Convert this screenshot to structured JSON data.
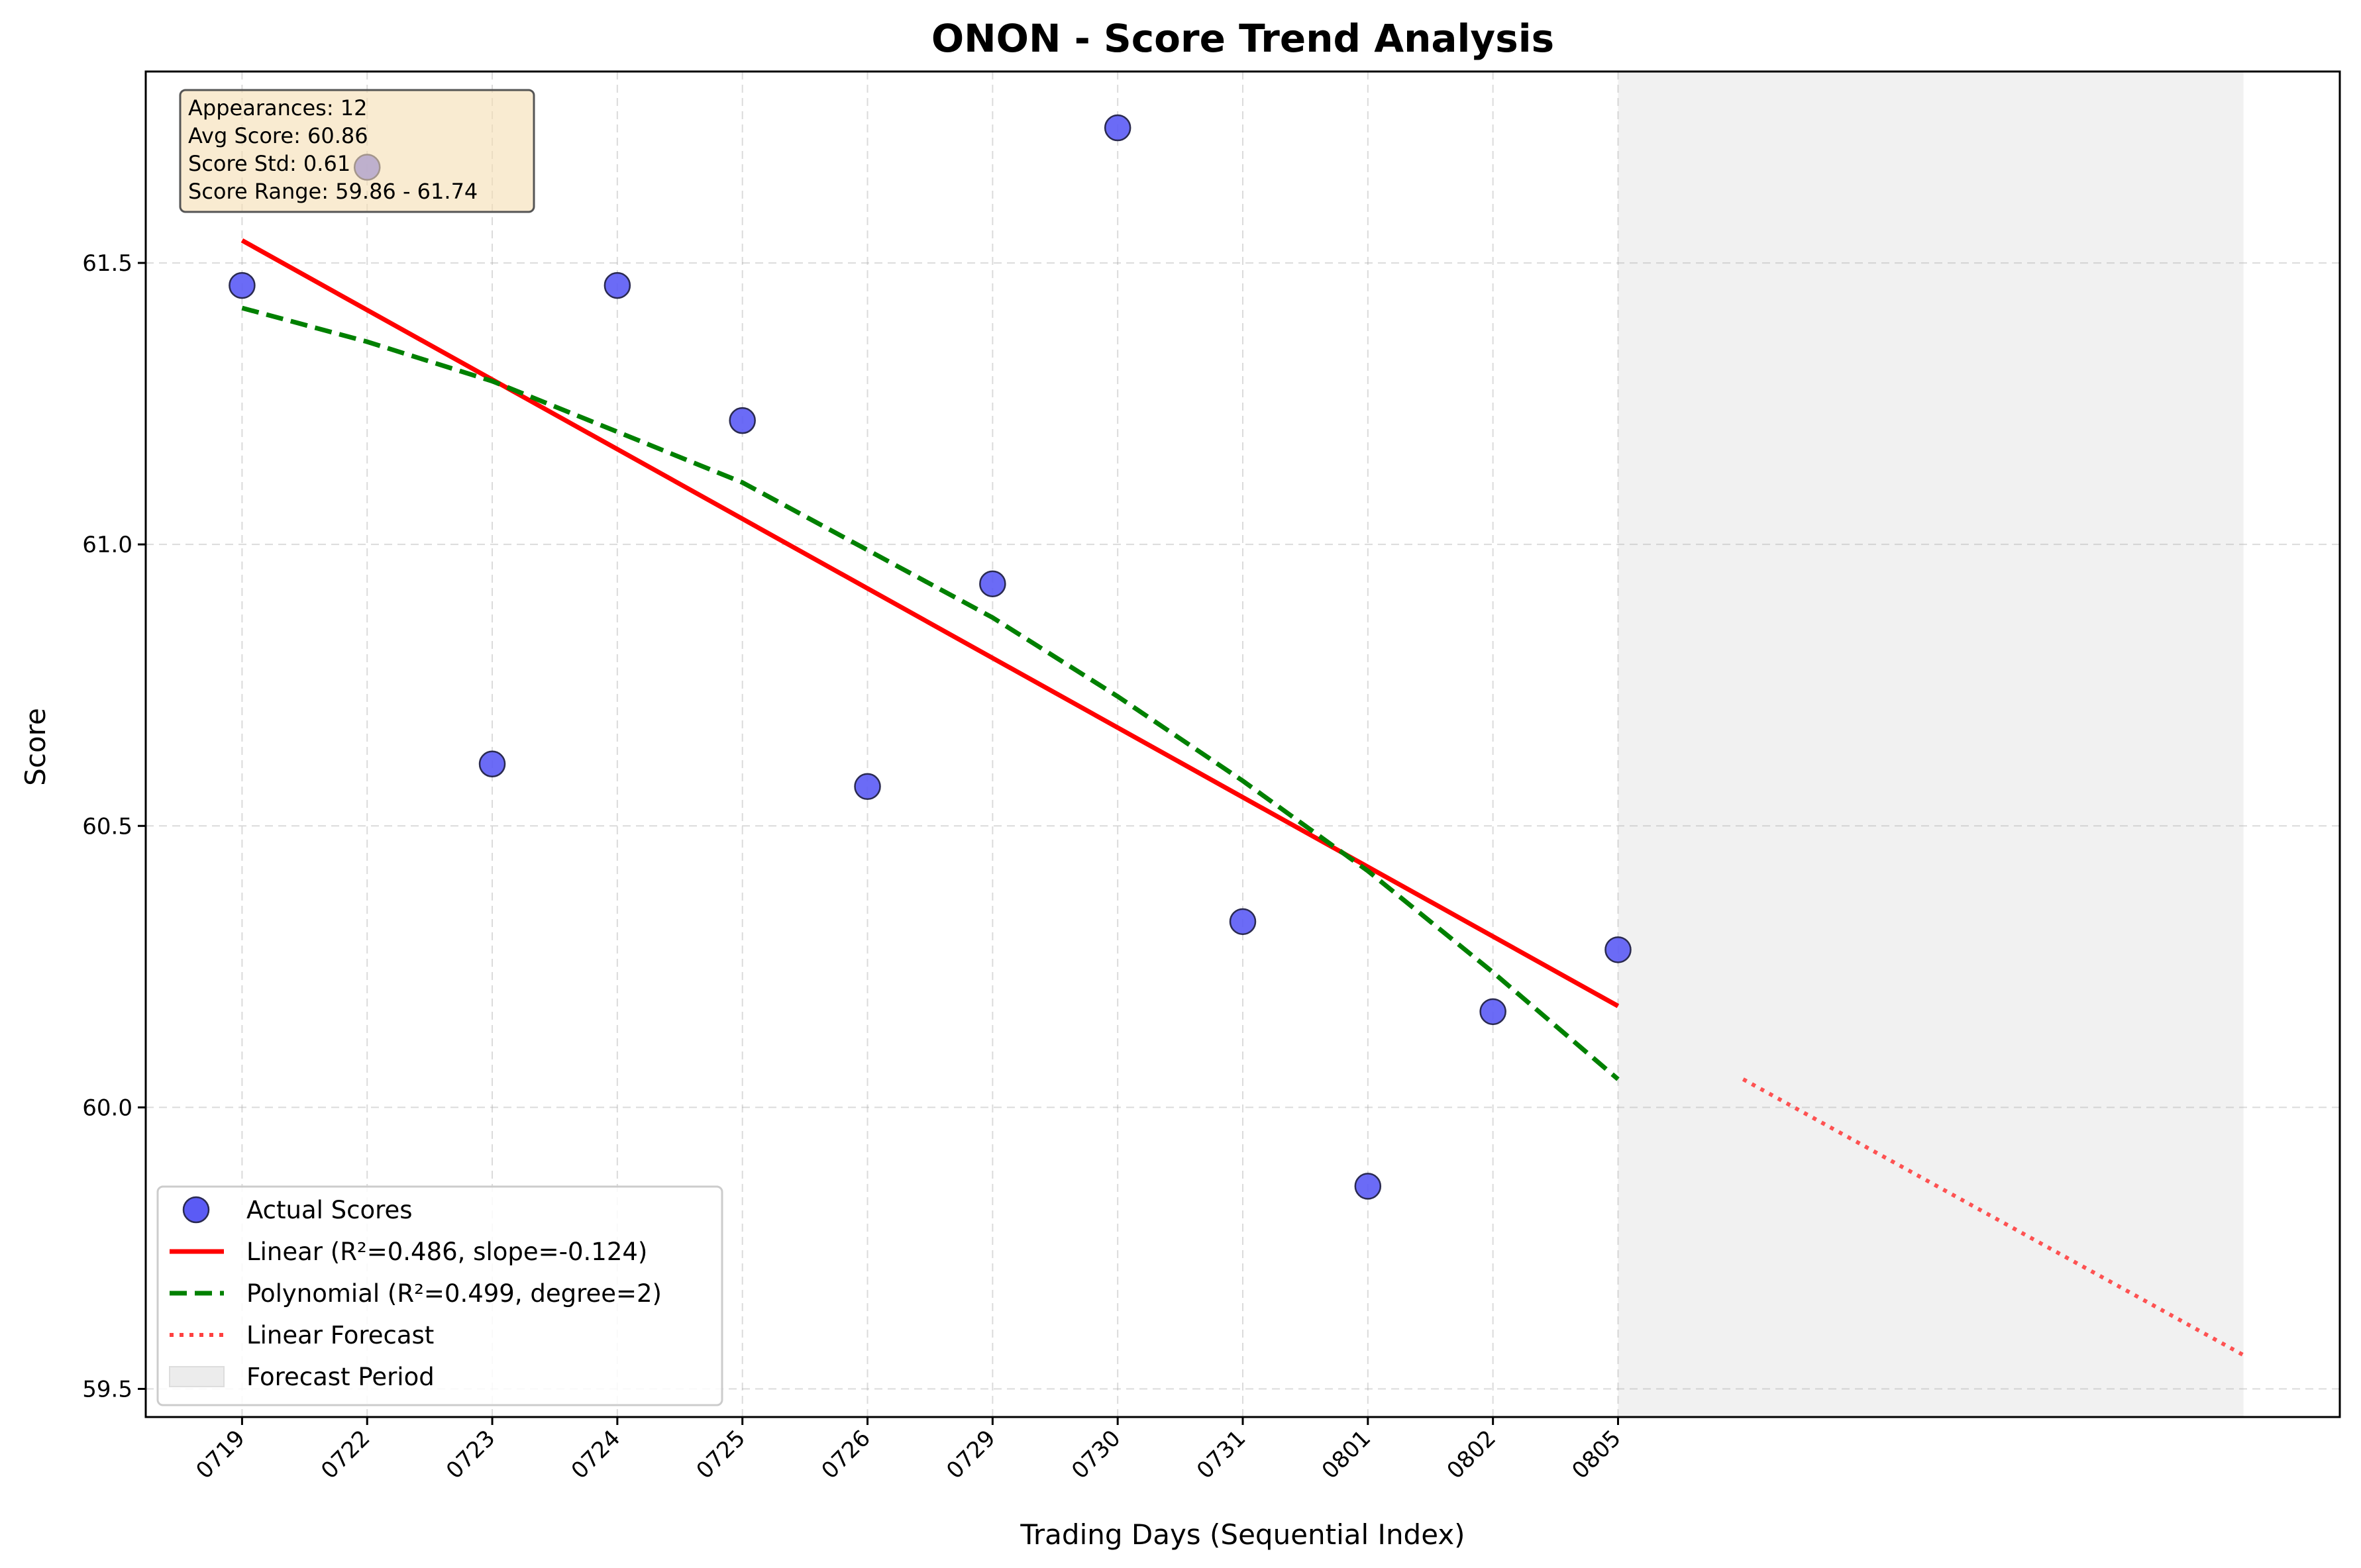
{
  "chart_data": {
    "type": "scatter",
    "title": "ONON - Score Trend Analysis",
    "xlabel": "Trading Days (Sequential Index)",
    "ylabel": "Score",
    "xlim": [
      -0.77,
      16.77
    ],
    "ylim": [
      59.45,
      61.84
    ],
    "grid": true,
    "legend_position": "lower-left",
    "categories": [
      "0719",
      "0722",
      "0723",
      "0724",
      "0725",
      "0726",
      "0729",
      "0730",
      "0731",
      "0801",
      "0802",
      "0805"
    ],
    "y_ticks": [
      59.5,
      60.0,
      60.5,
      61.0,
      61.5
    ],
    "y_tick_labels": [
      "59.5",
      "60.0",
      "60.5",
      "61.0",
      "61.5"
    ],
    "series": [
      {
        "name": "Actual Scores",
        "kind": "scatter",
        "color": "#5b5bf5",
        "x": [
          0,
          1,
          2,
          3,
          4,
          5,
          6,
          7,
          8,
          9,
          10,
          11
        ],
        "values": [
          61.46,
          61.67,
          60.61,
          61.46,
          61.22,
          60.57,
          60.93,
          61.74,
          60.33,
          59.86,
          60.17,
          60.28
        ]
      },
      {
        "name": "Linear (R²=0.486, slope=-0.124)",
        "kind": "line",
        "color": "#ff0000",
        "x": [
          0,
          11
        ],
        "values": [
          61.54,
          60.18
        ]
      },
      {
        "name": "Polynomial (R²=0.499, degree=2)",
        "kind": "dashed",
        "color": "#008000",
        "x": [
          0,
          1,
          2,
          3,
          4,
          5,
          6,
          7,
          8,
          9,
          10,
          11
        ],
        "values": [
          61.42,
          61.36,
          61.29,
          61.2,
          61.11,
          60.99,
          60.87,
          60.73,
          60.58,
          60.42,
          60.24,
          60.05
        ]
      },
      {
        "name": "Linear Forecast",
        "kind": "dotted",
        "color": "#ff4040",
        "x": [
          12,
          16
        ],
        "values": [
          60.05,
          59.56
        ]
      }
    ],
    "forecast_period": {
      "name": "Forecast Period",
      "x_start": 11,
      "x_end": 16,
      "color": "#ececec"
    },
    "stats_box": {
      "lines": [
        "Appearances: 12",
        "Avg Score: 60.86",
        "Score Std: 0.61",
        "Score Range: 59.86 - 61.74"
      ],
      "background": "#f5deb3"
    }
  }
}
